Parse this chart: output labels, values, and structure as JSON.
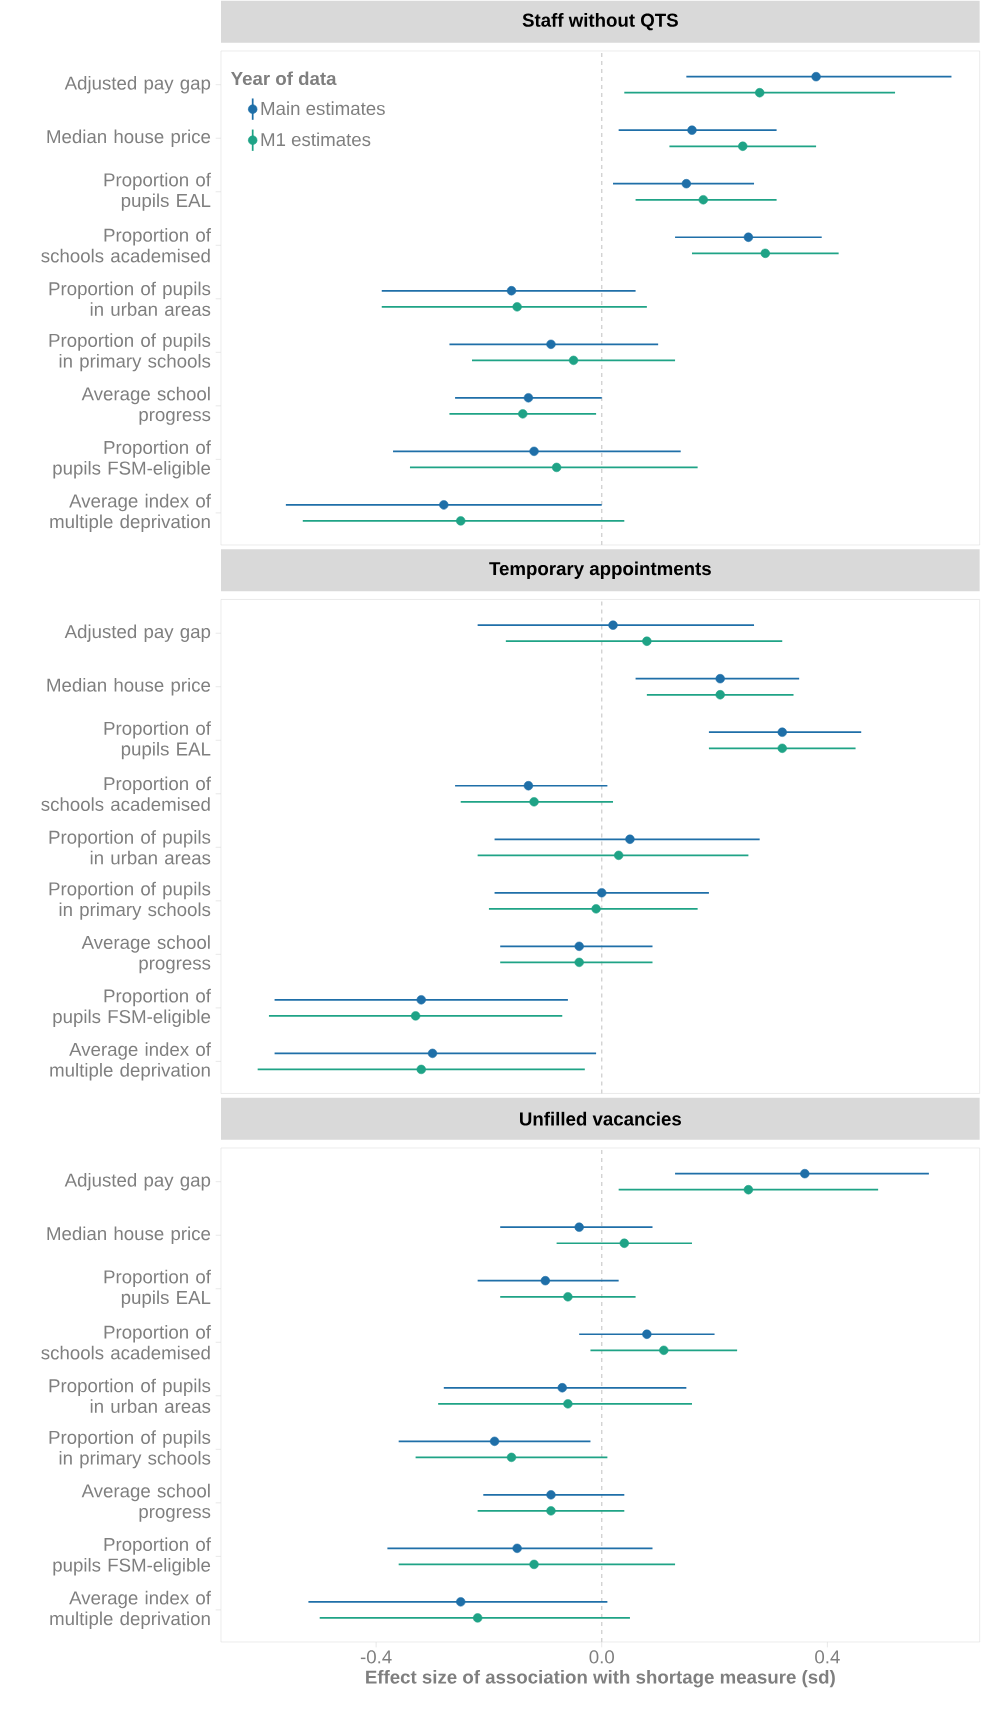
{
  "chart_data": [
    {
      "type": "scatter",
      "title": "Staff without QTS",
      "orientation": "horizontal",
      "marker": "circle",
      "legend": "top left",
      "legend_title": "Year of data",
      "tick_labels": "y",
      "categories": [
        "Adjusted pay gap",
        "Median house price",
        "Proportion of pupils EAL",
        "Proportion of schools academised",
        "Proportion of pupils in urban areas",
        "Proportion of pupils in primary schools",
        "Average school progress",
        "Proportion of pupils FSM-eligible",
        "Average index of multiple deprivation"
      ],
      "series": [
        {
          "name": "Main estimates",
          "color": "#1f6fa8",
          "values": [
            0.38,
            0.16,
            0.15,
            0.26,
            -0.16,
            -0.09,
            -0.13,
            -0.12,
            -0.28
          ],
          "errors": [
            [
              0.15,
              0.62
            ],
            [
              0.03,
              0.31
            ],
            [
              0.02,
              0.27
            ],
            [
              0.13,
              0.39
            ],
            [
              -0.39,
              0.06
            ],
            [
              -0.27,
              0.1
            ],
            [
              -0.26,
              0.0
            ],
            [
              -0.37,
              0.14
            ],
            [
              -0.56,
              0.0
            ]
          ]
        },
        {
          "name": "M1 estimates",
          "color": "#1fa386",
          "values": [
            0.28,
            0.25,
            0.18,
            0.29,
            -0.15,
            -0.05,
            -0.14,
            -0.08,
            -0.25
          ],
          "errors": [
            [
              0.04,
              0.52
            ],
            [
              0.12,
              0.38
            ],
            [
              0.06,
              0.31
            ],
            [
              0.16,
              0.42
            ],
            [
              -0.39,
              0.08
            ],
            [
              -0.23,
              0.13
            ],
            [
              -0.27,
              -0.01
            ],
            [
              -0.34,
              0.17
            ],
            [
              -0.53,
              0.04
            ]
          ]
        }
      ],
      "xlim": [
        -0.675,
        0.67
      ],
      "ref_lines": [
        {
          "axis": "x",
          "value": 0,
          "color": "#d0d0d0",
          "line_style": "dashed"
        }
      ]
    },
    {
      "type": "scatter",
      "title": "Temporary appointments",
      "orientation": "horizontal",
      "marker": "circle",
      "tick_labels": "y",
      "categories": [
        "Adjusted pay gap",
        "Median house price",
        "Proportion of pupils EAL",
        "Proportion of schools academised",
        "Proportion of pupils in urban areas",
        "Proportion of pupils in primary schools",
        "Average school progress",
        "Proportion of pupils FSM-eligible",
        "Average index of multiple deprivation"
      ],
      "series": [
        {
          "color": "#1f6fa8",
          "values": [
            0.02,
            0.21,
            0.32,
            -0.13,
            0.05,
            0.0,
            -0.04,
            -0.32,
            -0.3
          ],
          "errors": [
            [
              -0.22,
              0.27
            ],
            [
              0.06,
              0.35
            ],
            [
              0.19,
              0.46
            ],
            [
              -0.26,
              0.01
            ],
            [
              -0.19,
              0.28
            ],
            [
              -0.19,
              0.19
            ],
            [
              -0.18,
              0.09
            ],
            [
              -0.58,
              -0.06
            ],
            [
              -0.58,
              -0.01
            ]
          ]
        },
        {
          "color": "#1fa386",
          "values": [
            0.08,
            0.21,
            0.32,
            -0.12,
            0.03,
            -0.01,
            -0.04,
            -0.33,
            -0.32
          ],
          "errors": [
            [
              -0.17,
              0.32
            ],
            [
              0.08,
              0.34
            ],
            [
              0.19,
              0.45
            ],
            [
              -0.25,
              0.02
            ],
            [
              -0.22,
              0.26
            ],
            [
              -0.2,
              0.17
            ],
            [
              -0.18,
              0.09
            ],
            [
              -0.59,
              -0.07
            ],
            [
              -0.61,
              -0.03
            ]
          ]
        }
      ],
      "xlim": [
        -0.675,
        0.67
      ],
      "ref_lines": [
        {
          "axis": "x",
          "value": 0,
          "color": "#d0d0d0",
          "line_style": "dashed"
        }
      ]
    },
    {
      "type": "scatter",
      "title": "Unfilled vacancies",
      "orientation": "horizontal",
      "marker": "circle",
      "xlabel": "Effect size of association with shortage measure (sd)",
      "categories": [
        "Adjusted pay gap",
        "Median house price",
        "Proportion of pupils EAL",
        "Proportion of schools academised",
        "Proportion of pupils in urban areas",
        "Proportion of pupils in primary schools",
        "Average school progress",
        "Proportion of pupils FSM-eligible",
        "Average index of multiple deprivation"
      ],
      "series": [
        {
          "color": "#1f6fa8",
          "values": [
            0.36,
            -0.04,
            -0.1,
            0.08,
            -0.07,
            -0.19,
            -0.09,
            -0.15,
            -0.25
          ],
          "errors": [
            [
              0.13,
              0.58
            ],
            [
              -0.18,
              0.09
            ],
            [
              -0.22,
              0.03
            ],
            [
              -0.04,
              0.2
            ],
            [
              -0.28,
              0.15
            ],
            [
              -0.36,
              -0.02
            ],
            [
              -0.21,
              0.04
            ],
            [
              -0.38,
              0.09
            ],
            [
              -0.52,
              0.01
            ]
          ]
        },
        {
          "color": "#1fa386",
          "values": [
            0.26,
            0.04,
            -0.06,
            0.11,
            -0.06,
            -0.16,
            -0.09,
            -0.12,
            -0.22
          ],
          "errors": [
            [
              0.03,
              0.49
            ],
            [
              -0.08,
              0.16
            ],
            [
              -0.18,
              0.06
            ],
            [
              -0.02,
              0.24
            ],
            [
              -0.29,
              0.16
            ],
            [
              -0.33,
              0.01
            ],
            [
              -0.22,
              0.04
            ],
            [
              -0.36,
              0.13
            ],
            [
              -0.5,
              0.05
            ]
          ]
        }
      ],
      "xlim": [
        -0.675,
        0.67
      ],
      "xticks": [
        {
          "value": -0.4,
          "label": "-0.4"
        },
        {
          "value": 0,
          "label": "0.0"
        },
        {
          "value": 0.4,
          "label": "0.4"
        }
      ],
      "ref_lines": [
        {
          "axis": "x",
          "value": 0,
          "color": "#d0d0d0",
          "line_style": "dashed"
        }
      ]
    }
  ]
}
